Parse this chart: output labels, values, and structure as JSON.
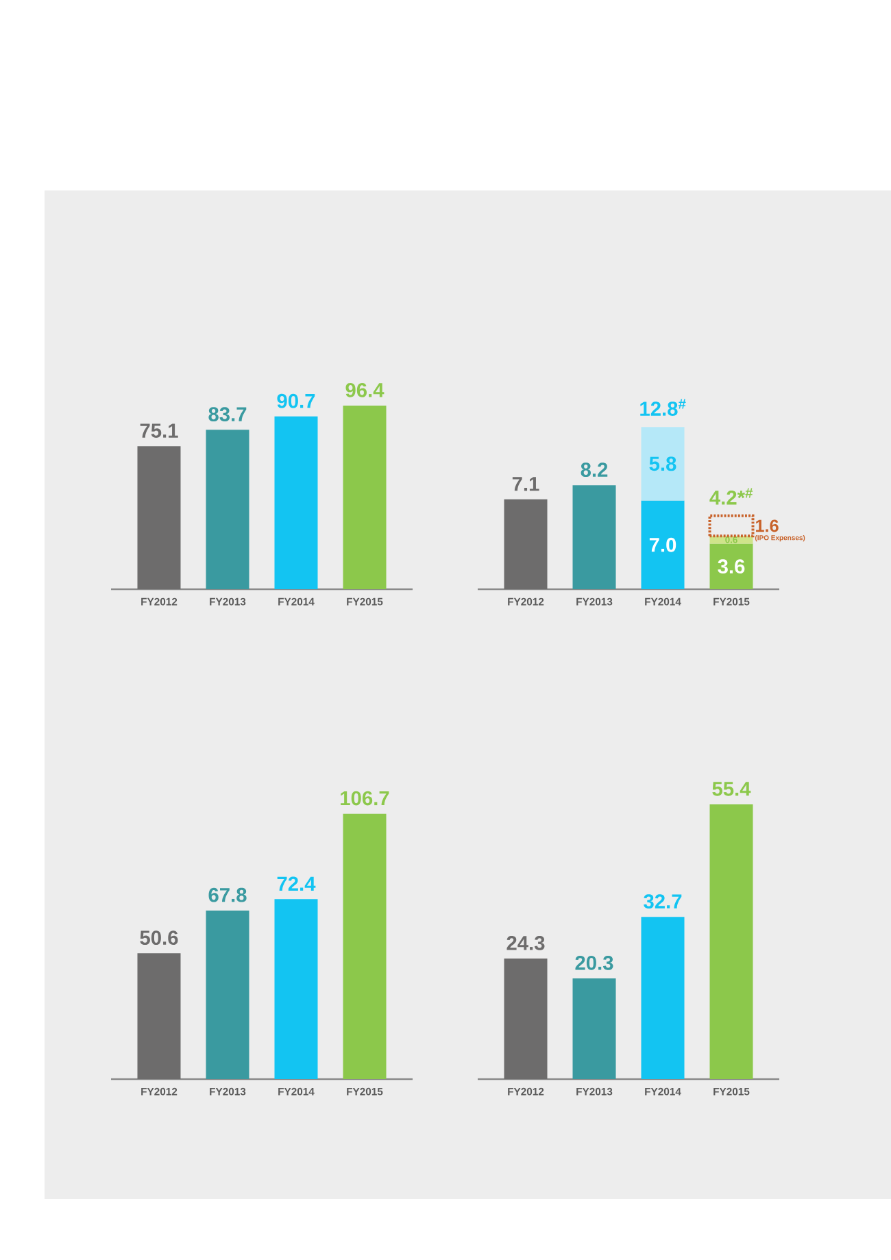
{
  "chart_data": [
    {
      "type": "bar",
      "categories": [
        "FY2012",
        "FY2013",
        "FY2014",
        "FY2015"
      ],
      "values": [
        75.1,
        83.7,
        90.7,
        96.4
      ],
      "colors": [
        "#6d6c6c",
        "#3a9aa0",
        "#13c4f2",
        "#8cc84b"
      ],
      "data_labels": true
    },
    {
      "type": "bar",
      "stacked": true,
      "categories": [
        "FY2012",
        "FY2013",
        "FY2014",
        "FY2015"
      ],
      "series": [
        {
          "colors": [
            "#6d6c6c",
            "#3a9aa0",
            "#13c4f2",
            "#8cc84b"
          ],
          "values": [
            7.1,
            8.2,
            7.0,
            3.6
          ],
          "value_labels": [
            "7.1",
            "8.2",
            "7.0",
            "3.6"
          ]
        },
        {
          "colors": [
            "#b5e8f8",
            "#b5e8f8",
            "#b5e8f8",
            "#cfe48a"
          ],
          "values": [
            null,
            null,
            5.8,
            0.6
          ],
          "value_labels": [
            null,
            null,
            "5.8",
            "0.6"
          ]
        },
        {
          "name": "(IPO Expenses)",
          "color": "#c8622a",
          "line_style": "dotted",
          "values": [
            null,
            null,
            null,
            1.6
          ],
          "value_labels": [
            null,
            null,
            null,
            "1.6"
          ]
        }
      ],
      "annotations": [
        {
          "text": "12.8$^{#}$",
          "x": "FY2014",
          "y": 12.8
        },
        {
          "text": "4.2*$^{#}$",
          "x": "FY2015",
          "y": 4.2
        }
      ]
    },
    {
      "type": "bar",
      "categories": [
        "FY2012",
        "FY2013",
        "FY2014",
        "FY2015"
      ],
      "values": [
        50.6,
        67.8,
        72.4,
        106.7
      ],
      "colors": [
        "#6d6c6c",
        "#3a9aa0",
        "#13c4f2",
        "#8cc84b"
      ],
      "data_labels": true
    },
    {
      "type": "bar",
      "categories": [
        "FY2012",
        "FY2013",
        "FY2014",
        "FY2015"
      ],
      "values": [
        24.3,
        20.3,
        32.7,
        55.4
      ],
      "colors": [
        "#6d6c6c",
        "#3a9aa0",
        "#13c4f2",
        "#8cc84b"
      ],
      "data_labels": true
    }
  ]
}
